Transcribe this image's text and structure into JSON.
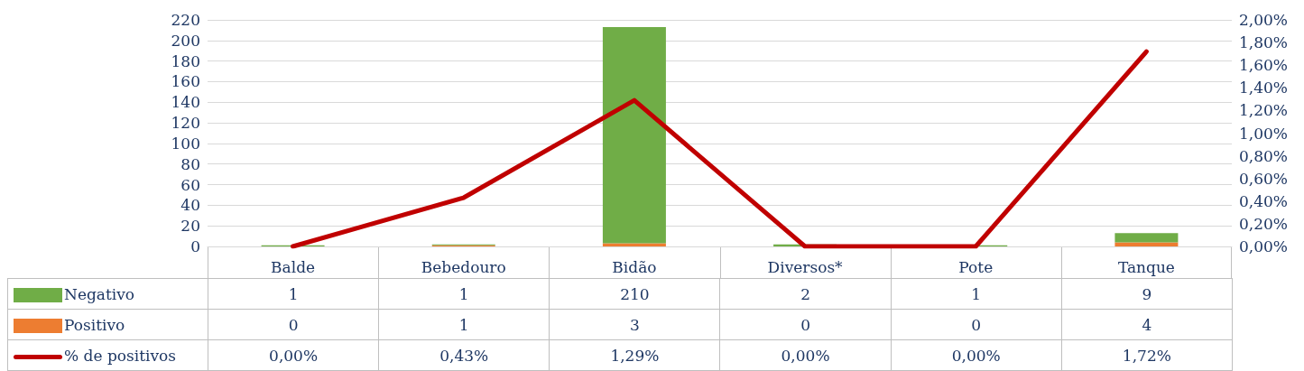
{
  "chart_data": {
    "type": "bar",
    "stacked": true,
    "categories": [
      "Balde",
      "Bebedouro",
      "Bidão",
      "Diversos*",
      "Pote",
      "Tanque"
    ],
    "series": [
      {
        "name": "Positivo",
        "color": "#ed7d31",
        "values": [
          0,
          1,
          3,
          0,
          0,
          4
        ],
        "value_labels": [
          "0",
          "1",
          "3",
          "0",
          "0",
          "4"
        ]
      },
      {
        "name": "Negativo",
        "color": "#70ad47",
        "values": [
          1,
          1,
          210,
          2,
          1,
          9
        ],
        "value_labels": [
          "1",
          "1",
          "210",
          "2",
          "1",
          "9"
        ]
      },
      {
        "name": "% de positivos",
        "type": "line",
        "axis": "y2",
        "color": "#c00000",
        "values": [
          0,
          0.43,
          1.29,
          0,
          0,
          1.72
        ],
        "value_labels": [
          "0,00%",
          "0,43%",
          "1,29%",
          "0,00%",
          "0,00%",
          "1,72%"
        ]
      }
    ],
    "ylim": [
      0,
      220
    ],
    "yticks": [
      0,
      20,
      40,
      60,
      80,
      100,
      120,
      140,
      160,
      180,
      200,
      220
    ],
    "y2lim": [
      0,
      2
    ],
    "y2ticks": [
      {
        "value": 0,
        "label": "0,00%"
      },
      {
        "value": 0.2,
        "label": "0,20%"
      },
      {
        "value": 0.4,
        "label": "0,40%"
      },
      {
        "value": 0.6,
        "label": "0,60%"
      },
      {
        "value": 0.8,
        "label": "0,80%"
      },
      {
        "value": 1,
        "label": "1,00%"
      },
      {
        "value": 1.2,
        "label": "1,20%"
      },
      {
        "value": 1.4,
        "label": "1,40%"
      },
      {
        "value": 1.6,
        "label": "1,60%"
      },
      {
        "value": 1.8,
        "label": "1,80%"
      },
      {
        "value": 2,
        "label": "2,00%"
      }
    ],
    "grid": "y",
    "legend": "bottom left",
    "marker": "none",
    "line_style": "solid"
  }
}
